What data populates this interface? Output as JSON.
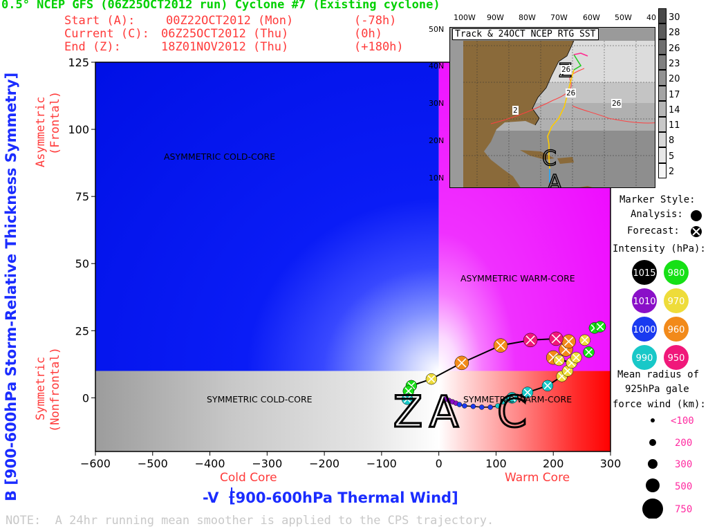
{
  "header": {
    "title": "0.5° NCEP GFS (06Z25OCT2012 run) Cyclone #7 (Existing cyclone)",
    "start_label": "Start (A):",
    "start_time": "00Z22OCT2012 (Mon)",
    "start_offset": "(-78h)",
    "current_label": "Current (C):",
    "current_time": "06Z25OCT2012 (Thu)",
    "current_offset": "(0h)",
    "end_label": "End (Z):",
    "end_time": "18Z01NOV2012 (Thu)",
    "end_offset": "(+180h)"
  },
  "axes": {
    "ylabel": "B [900-600hPa Storm-Relative Thickness Symmetry]",
    "xlabel": "-V  [900-600hPa Thermal Wind]",
    "xlabel_sub": "T",
    "xlabel_sup": "L",
    "y_top_label_1": "Asymmetric",
    "y_top_label_2": "(Frontal)",
    "y_bottom_label_1": "Symmetric",
    "y_bottom_label_2": "(Nonfrontal)",
    "x_left_label": "Cold Core",
    "x_right_label": "Warm Core"
  },
  "quadrants": {
    "ul": "ASYMMETRIC COLD-CORE",
    "ur": "ASYMMETRIC WARM-CORE",
    "ll": "SYMMETRIC COLD-CORE",
    "lr": "SYMMETRIC WARM-CORE"
  },
  "markers_text": {
    "A": "A",
    "C": "C",
    "Z": "Z"
  },
  "note": "NOTE:  A 24hr running mean smoother is applied to the CPS trajectory.",
  "inset": {
    "title": "Track & 24OCT NCEP RTG SST",
    "lon_labels": [
      "100W",
      "90W",
      "80W",
      "70W",
      "60W",
      "50W",
      "40"
    ],
    "lat_labels": [
      "50N",
      "40N",
      "30N",
      "20N",
      "10N"
    ],
    "sst_labels": [
      "26",
      "26",
      "26",
      "2"
    ],
    "colorbar_labels": [
      "30",
      "28",
      "26",
      "23",
      "20",
      "17",
      "14",
      "11",
      "8",
      "5",
      "2"
    ],
    "colorbar_colors": [
      "#4a4a4a",
      "#5c5c5c",
      "#6e6e6e",
      "#808080",
      "#929292",
      "#a4a4a4",
      "#b6b6b6",
      "#c8c8c8",
      "#d8d8d8",
      "#e8e8e8",
      "#f6f6f6"
    ]
  },
  "legend": {
    "marker_style_title": "Marker Style:",
    "analysis_label": "Analysis:",
    "forecast_label": "Forecast:",
    "intensity_title": "Intensity (hPa):",
    "intensities": [
      {
        "label": "1015",
        "color": "#000000",
        "text_color": "#ffffff"
      },
      {
        "label": "980",
        "color": "#16e016",
        "text_color": "#ffffff"
      },
      {
        "label": "1010",
        "color": "#8a10c8",
        "text_color": "#ffffff"
      },
      {
        "label": "970",
        "color": "#eedc3a",
        "text_color": "#ffffff"
      },
      {
        "label": "1000",
        "color": "#1a3af0",
        "text_color": "#ffffff"
      },
      {
        "label": "960",
        "color": "#f28a1a",
        "text_color": "#ffffff"
      },
      {
        "label": "990",
        "color": "#18c8c8",
        "text_color": "#ffffff"
      },
      {
        "label": "950",
        "color": "#f0187a",
        "text_color": "#ffffff"
      }
    ],
    "radius_title_1": "Mean radius of",
    "radius_title_2": "925hPa gale",
    "radius_title_3": "force wind (km):",
    "radii": [
      "<100",
      "200",
      "300",
      "500",
      "750"
    ]
  },
  "chart_data": {
    "type": "scatter",
    "xlabel": "-VTL [900-600hPa Thermal Wind]",
    "ylabel": "B [900-600hPa Storm-Relative Thickness Symmetry]",
    "xlim": [
      -600,
      300
    ],
    "ylim": [
      -20,
      125
    ],
    "xticks": [
      -600,
      -500,
      -400,
      -300,
      -200,
      -100,
      0,
      100,
      200,
      300
    ],
    "yticks": [
      0,
      25,
      50,
      75,
      100,
      125
    ],
    "analysis": [
      {
        "x": 12,
        "y": -0.5,
        "p": 1010
      },
      {
        "x": 18,
        "y": -1,
        "p": 1010
      },
      {
        "x": 24,
        "y": -1.5,
        "p": 1010
      },
      {
        "x": 30,
        "y": -2,
        "p": 1005
      },
      {
        "x": 36,
        "y": -2.5,
        "p": 1000
      },
      {
        "x": 45,
        "y": -3,
        "p": 1000
      },
      {
        "x": 60,
        "y": -3.2,
        "p": 995
      },
      {
        "x": 75,
        "y": -3.5,
        "p": 995
      },
      {
        "x": 90,
        "y": -3.5,
        "p": 995
      },
      {
        "x": 103,
        "y": -3,
        "p": 993
      },
      {
        "x": 112,
        "y": -1.5,
        "p": 992
      },
      {
        "x": 120,
        "y": -0.5,
        "p": 990
      }
    ],
    "forecast": [
      {
        "x": 128,
        "y": 0,
        "p": 990
      },
      {
        "x": 155,
        "y": 2,
        "p": 990
      },
      {
        "x": 190,
        "y": 4.5,
        "p": 985
      },
      {
        "x": 215,
        "y": 8,
        "p": 970
      },
      {
        "x": 225,
        "y": 10,
        "p": 965
      },
      {
        "x": 232,
        "y": 13,
        "p": 965
      },
      {
        "x": 200,
        "y": 15,
        "p": 960
      },
      {
        "x": 210,
        "y": 14,
        "p": 965
      },
      {
        "x": 222,
        "y": 18,
        "p": 960
      },
      {
        "x": 227,
        "y": 21,
        "p": 955
      },
      {
        "x": 205,
        "y": 22,
        "p": 950
      },
      {
        "x": 160,
        "y": 21.5,
        "p": 950
      },
      {
        "x": 108,
        "y": 19.5,
        "p": 960
      },
      {
        "x": 40,
        "y": 13,
        "p": 960
      },
      {
        "x": -13,
        "y": 7,
        "p": 970
      },
      {
        "x": -48,
        "y": 4.5,
        "p": 980
      },
      {
        "x": -53,
        "y": 2.5,
        "p": 980
      },
      {
        "x": -55,
        "y": -0.5,
        "p": 985
      },
      {
        "x": 240,
        "y": 15,
        "p": 970
      },
      {
        "x": 255,
        "y": 21.5,
        "p": 970
      },
      {
        "x": 272,
        "y": 26,
        "p": 975
      },
      {
        "x": 282,
        "y": 26.5,
        "p": 980
      },
      {
        "x": 262,
        "y": 17,
        "p": 980
      }
    ]
  }
}
